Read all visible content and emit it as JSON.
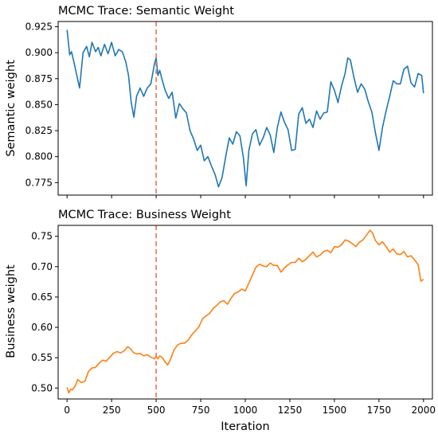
{
  "chart_data": [
    {
      "type": "line",
      "title": "MCMC Trace: Semantic Weight",
      "xlabel": "",
      "ylabel": "Semantic weight",
      "xlim": [
        -50,
        2050
      ],
      "ylim": [
        0.763,
        0.93
      ],
      "xticks": [
        0,
        250,
        500,
        750,
        1000,
        1250,
        1500,
        1750,
        2000
      ],
      "xtick_labels_visible": false,
      "yticks": [
        0.775,
        0.8,
        0.825,
        0.85,
        0.875,
        0.9,
        0.925
      ],
      "ytick_labels": [
        "0.775",
        "0.800",
        "0.825",
        "0.850",
        "0.875",
        "0.900",
        "0.925"
      ],
      "grid": false,
      "burn_in_marker": {
        "x": 500,
        "color": "#e8734f",
        "style": "dashed"
      },
      "series": [
        {
          "color": "#1f77b4",
          "x": [
            0,
            15,
            25,
            40,
            55,
            70,
            90,
            110,
            125,
            140,
            160,
            175,
            190,
            210,
            230,
            250,
            270,
            290,
            310,
            330,
            345,
            360,
            375,
            390,
            410,
            430,
            450,
            470,
            490,
            500,
            510,
            520,
            535,
            550,
            570,
            590,
            610,
            630,
            650,
            670,
            690,
            710,
            730,
            750,
            770,
            790,
            810,
            830,
            850,
            870,
            890,
            910,
            930,
            950,
            970,
            990,
            1005,
            1020,
            1040,
            1060,
            1080,
            1100,
            1120,
            1140,
            1160,
            1180,
            1200,
            1220,
            1240,
            1260,
            1280,
            1300,
            1320,
            1340,
            1360,
            1380,
            1400,
            1420,
            1440,
            1460,
            1480,
            1500,
            1520,
            1540,
            1560,
            1575,
            1590,
            1610,
            1630,
            1650,
            1670,
            1690,
            1710,
            1730,
            1750,
            1770,
            1790,
            1810,
            1830,
            1850,
            1870,
            1890,
            1910,
            1930,
            1950,
            1970,
            1990,
            2000
          ],
          "y": [
            0.922,
            0.898,
            0.901,
            0.89,
            0.878,
            0.866,
            0.9,
            0.906,
            0.896,
            0.91,
            0.901,
            0.905,
            0.897,
            0.908,
            0.899,
            0.91,
            0.897,
            0.903,
            0.901,
            0.891,
            0.878,
            0.852,
            0.838,
            0.858,
            0.866,
            0.858,
            0.866,
            0.87,
            0.889,
            0.895,
            0.878,
            0.883,
            0.873,
            0.864,
            0.856,
            0.862,
            0.837,
            0.851,
            0.846,
            0.842,
            0.825,
            0.817,
            0.806,
            0.811,
            0.796,
            0.8,
            0.791,
            0.783,
            0.771,
            0.78,
            0.8,
            0.818,
            0.812,
            0.824,
            0.82,
            0.798,
            0.772,
            0.806,
            0.822,
            0.826,
            0.811,
            0.818,
            0.828,
            0.821,
            0.804,
            0.828,
            0.843,
            0.833,
            0.826,
            0.806,
            0.807,
            0.841,
            0.847,
            0.832,
            0.836,
            0.828,
            0.844,
            0.836,
            0.842,
            0.843,
            0.872,
            0.864,
            0.852,
            0.868,
            0.88,
            0.895,
            0.893,
            0.876,
            0.862,
            0.87,
            0.865,
            0.853,
            0.843,
            0.823,
            0.806,
            0.828,
            0.844,
            0.858,
            0.873,
            0.87,
            0.87,
            0.884,
            0.887,
            0.871,
            0.867,
            0.88,
            0.878,
            0.861
          ]
        }
      ]
    },
    {
      "type": "line",
      "title": "MCMC Trace: Business Weight",
      "xlabel": "Iteration",
      "ylabel": "Business weight",
      "xlim": [
        -50,
        2050
      ],
      "ylim": [
        0.482,
        0.768
      ],
      "xticks": [
        0,
        250,
        500,
        750,
        1000,
        1250,
        1500,
        1750,
        2000
      ],
      "xtick_labels": [
        "0",
        "250",
        "500",
        "750",
        "1000",
        "1250",
        "1500",
        "1750",
        "2000"
      ],
      "xtick_labels_visible": true,
      "yticks": [
        0.5,
        0.55,
        0.6,
        0.65,
        0.7,
        0.75
      ],
      "ytick_labels": [
        "0.50",
        "0.55",
        "0.60",
        "0.65",
        "0.70",
        "0.75"
      ],
      "grid": false,
      "burn_in_marker": {
        "x": 500,
        "color": "#e8734f",
        "style": "dashed"
      },
      "series": [
        {
          "color": "#ff7f0e",
          "x": [
            0,
            10,
            20,
            30,
            45,
            60,
            80,
            100,
            120,
            140,
            160,
            180,
            200,
            220,
            240,
            260,
            280,
            300,
            320,
            340,
            355,
            370,
            390,
            410,
            430,
            450,
            470,
            490,
            500,
            510,
            520,
            535,
            550,
            565,
            580,
            600,
            620,
            640,
            660,
            680,
            700,
            720,
            740,
            760,
            780,
            800,
            820,
            840,
            860,
            880,
            900,
            920,
            940,
            960,
            980,
            1000,
            1020,
            1040,
            1060,
            1080,
            1100,
            1120,
            1140,
            1160,
            1180,
            1200,
            1220,
            1240,
            1260,
            1280,
            1300,
            1320,
            1340,
            1360,
            1380,
            1400,
            1420,
            1440,
            1460,
            1480,
            1500,
            1520,
            1540,
            1560,
            1580,
            1600,
            1620,
            1640,
            1660,
            1680,
            1700,
            1715,
            1730,
            1750,
            1770,
            1790,
            1810,
            1830,
            1850,
            1870,
            1890,
            1910,
            1930,
            1950,
            1970,
            1985,
            2000
          ],
          "y": [
            0.501,
            0.492,
            0.498,
            0.497,
            0.503,
            0.514,
            0.509,
            0.511,
            0.527,
            0.533,
            0.534,
            0.541,
            0.546,
            0.544,
            0.551,
            0.557,
            0.56,
            0.558,
            0.561,
            0.568,
            0.565,
            0.559,
            0.556,
            0.557,
            0.553,
            0.555,
            0.551,
            0.548,
            0.552,
            0.548,
            0.553,
            0.55,
            0.543,
            0.538,
            0.547,
            0.563,
            0.571,
            0.574,
            0.574,
            0.579,
            0.588,
            0.594,
            0.601,
            0.614,
            0.619,
            0.623,
            0.631,
            0.636,
            0.642,
            0.644,
            0.638,
            0.648,
            0.656,
            0.658,
            0.663,
            0.66,
            0.673,
            0.686,
            0.699,
            0.704,
            0.701,
            0.7,
            0.706,
            0.702,
            0.702,
            0.691,
            0.698,
            0.703,
            0.707,
            0.707,
            0.714,
            0.708,
            0.712,
            0.718,
            0.724,
            0.716,
            0.719,
            0.725,
            0.727,
            0.723,
            0.733,
            0.732,
            0.736,
            0.744,
            0.742,
            0.738,
            0.733,
            0.74,
            0.744,
            0.752,
            0.76,
            0.755,
            0.743,
            0.736,
            0.741,
            0.733,
            0.724,
            0.729,
            0.721,
            0.72,
            0.725,
            0.716,
            0.718,
            0.711,
            0.703,
            0.676,
            0.679
          ]
        }
      ]
    }
  ]
}
